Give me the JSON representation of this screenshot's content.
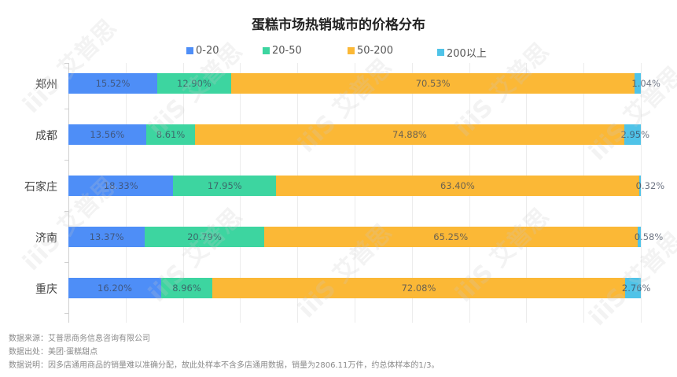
{
  "title": "蛋糕市场热销城市的价格分布",
  "legend": [
    {
      "label": "0-20",
      "color": "#4e8ef7"
    },
    {
      "label": "20-50",
      "color": "#3dd5a0"
    },
    {
      "label": "50-200",
      "color": "#fbb836"
    },
    {
      "label": "200以上",
      "color": "#4fc3e8"
    }
  ],
  "rows": [
    {
      "city": "郑州",
      "values": [
        15.52,
        12.9,
        70.53,
        1.04
      ],
      "labels": [
        "15.52%",
        "12.90%",
        "70.53%",
        "1.04%"
      ]
    },
    {
      "city": "成都",
      "values": [
        13.56,
        8.61,
        74.88,
        2.95
      ],
      "labels": [
        "13.56%",
        "8.61%",
        "74.88%",
        "2.95%"
      ]
    },
    {
      "city": "石家庄",
      "values": [
        18.33,
        17.95,
        63.4,
        0.32
      ],
      "labels": [
        "18.33%",
        "17.95%",
        "63.40%",
        "0.32%"
      ]
    },
    {
      "city": "济南",
      "values": [
        13.37,
        20.79,
        65.25,
        0.58
      ],
      "labels": [
        "13.37%",
        "20.79%",
        "65.25%",
        "0.58%"
      ]
    },
    {
      "city": "重庆",
      "values": [
        16.2,
        8.96,
        72.08,
        2.76
      ],
      "labels": [
        "16.20%",
        "8.96%",
        "72.08%",
        "2.76%"
      ]
    }
  ],
  "footer": {
    "source": "数据来源：艾普思商务信息咨询有限公司",
    "origin": "数据出处：美团·蛋糕甜点",
    "note": "数据说明：因多店通用商品的销量难以准确分配，故此处样本不含多店通用数据，销量为2806.11万件，约总体样本的1/3。"
  },
  "watermark": "iiiS 艾普思",
  "chart_data": {
    "type": "bar",
    "orientation": "horizontal",
    "stacked": "percent",
    "title": "蛋糕市场热销城市的价格分布",
    "categories": [
      "郑州",
      "成都",
      "石家庄",
      "济南",
      "重庆"
    ],
    "series": [
      {
        "name": "0-20",
        "color": "#4e8ef7",
        "values": [
          15.52,
          13.56,
          18.33,
          13.37,
          16.2
        ]
      },
      {
        "name": "20-50",
        "color": "#3dd5a0",
        "values": [
          12.9,
          8.61,
          17.95,
          20.79,
          8.96
        ]
      },
      {
        "name": "50-200",
        "color": "#fbb836",
        "values": [
          70.53,
          74.88,
          63.4,
          65.25,
          72.08
        ]
      },
      {
        "name": "200以上",
        "color": "#4fc3e8",
        "values": [
          1.04,
          2.95,
          0.32,
          0.58,
          2.76
        ]
      }
    ],
    "xlabel": "",
    "ylabel": "",
    "xlim": [
      0,
      100
    ],
    "grid": true,
    "legend_position": "top",
    "data_labels": true
  }
}
